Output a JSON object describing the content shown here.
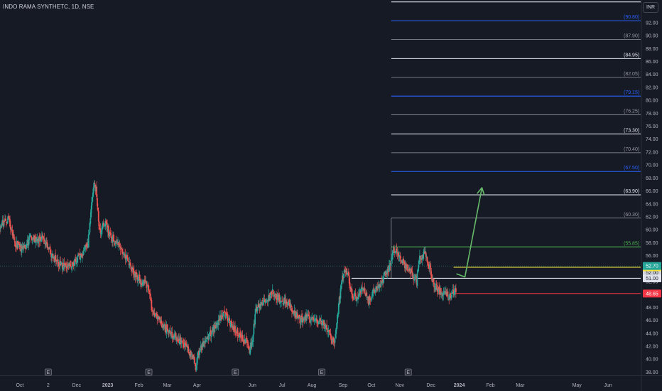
{
  "header": {
    "symbol_title": "INDO RAMA SYNTHETC, 1D, NSE",
    "currency_label": "INR"
  },
  "colors": {
    "background": "#161a25",
    "candle_up": "#26a69a",
    "candle_down": "#ef5350",
    "white_level": "#e0e3eb",
    "gray_level": "#9598a1",
    "blue_level": "#2962ff",
    "green_level": "#4caf50",
    "yellow_level": "#f7e13d",
    "red_level": "#f23645",
    "arrow": "#66bb6a",
    "current_price_line": "#26a69a"
  },
  "chart_data": {
    "type": "candlestick",
    "ylim": [
      37.5,
      95.5
    ],
    "x_range": [
      0,
      226
    ],
    "y_ticks": [
      "38.00",
      "40.00",
      "42.00",
      "44.00",
      "46.00",
      "48.00",
      "50.00",
      "52.00",
      "54.00",
      "56.00",
      "58.00",
      "60.00",
      "62.00",
      "64.00",
      "66.00",
      "68.00",
      "70.00",
      "72.00",
      "74.00",
      "76.00",
      "78.00",
      "80.00",
      "82.00",
      "84.00",
      "86.00",
      "88.00",
      "90.00",
      "92.00"
    ],
    "x_ticks": [
      {
        "label": "Oct",
        "x": 7,
        "bold": false
      },
      {
        "label": "2",
        "x": 17,
        "bold": false
      },
      {
        "label": "Dec",
        "x": 27,
        "bold": false
      },
      {
        "label": "2023",
        "x": 38,
        "bold": true
      },
      {
        "label": "Feb",
        "x": 49,
        "bold": false
      },
      {
        "label": "Mar",
        "x": 59,
        "bold": false
      },
      {
        "label": "Apr",
        "x": 69.5,
        "bold": false
      },
      {
        "label": "Jun",
        "x": 89,
        "bold": false
      },
      {
        "label": "Jul",
        "x": 99.5,
        "bold": false
      },
      {
        "label": "Aug",
        "x": 110,
        "bold": false
      },
      {
        "label": "Sep",
        "x": 121,
        "bold": false
      },
      {
        "label": "Oct",
        "x": 131,
        "bold": false
      },
      {
        "label": "Nov",
        "x": 141,
        "bold": false
      },
      {
        "label": "Dec",
        "x": 152,
        "bold": false
      },
      {
        "label": "2024",
        "x": 162,
        "bold": true
      },
      {
        "label": "Feb",
        "x": 173,
        "bold": false
      },
      {
        "label": "Mar",
        "x": 183.5,
        "bold": false
      },
      {
        "label": "May",
        "x": 203.5,
        "bold": false
      },
      {
        "label": "Jun",
        "x": 214.5,
        "bold": false
      }
    ],
    "earnings_markers": [
      {
        "label": "E",
        "x": 17
      },
      {
        "label": "E",
        "x": 52.5
      },
      {
        "label": "E",
        "x": 83
      },
      {
        "label": "E",
        "x": 113.5
      },
      {
        "label": "E",
        "x": 144
      }
    ],
    "price_anchors": [
      [
        0,
        60.6
      ],
      [
        3,
        61.8
      ],
      [
        5,
        58.2
      ],
      [
        8,
        56.8
      ],
      [
        11,
        59.0
      ],
      [
        13,
        58.5
      ],
      [
        15,
        58.9
      ],
      [
        17,
        57.0
      ],
      [
        20,
        55.0
      ],
      [
        23,
        54.3
      ],
      [
        26,
        54.8
      ],
      [
        29,
        56.5
      ],
      [
        31,
        57.5
      ],
      [
        33,
        67.0
      ],
      [
        34,
        66.0
      ],
      [
        35,
        59.5
      ],
      [
        37,
        61.0
      ],
      [
        39,
        59.0
      ],
      [
        42,
        57.5
      ],
      [
        44,
        56.0
      ],
      [
        47,
        53.5
      ],
      [
        50,
        52.0
      ],
      [
        52,
        51.5
      ],
      [
        54,
        47.0
      ],
      [
        57,
        45.5
      ],
      [
        60,
        44.0
      ],
      [
        63,
        43.0
      ],
      [
        66,
        41.5
      ],
      [
        68,
        40.5
      ],
      [
        69,
        38.5
      ],
      [
        70,
        40.8
      ],
      [
        72,
        43.0
      ],
      [
        75,
        44.5
      ],
      [
        77,
        46.0
      ],
      [
        79,
        47.0
      ],
      [
        81,
        45.8
      ],
      [
        84,
        44.0
      ],
      [
        87,
        42.5
      ],
      [
        88,
        41.5
      ],
      [
        89,
        42.8
      ],
      [
        90,
        47.0
      ],
      [
        92,
        49.0
      ],
      [
        94,
        48.5
      ],
      [
        96,
        50.5
      ],
      [
        98,
        49.5
      ],
      [
        100,
        49.0
      ],
      [
        102,
        48.5
      ],
      [
        104,
        47.0
      ],
      [
        106,
        46.0
      ],
      [
        108,
        46.5
      ],
      [
        111,
        46.0
      ],
      [
        113,
        46.2
      ],
      [
        115,
        45.0
      ],
      [
        117,
        43.0
      ],
      [
        118,
        42.5
      ],
      [
        119,
        47.0
      ],
      [
        121,
        53.0
      ],
      [
        122,
        54.0
      ],
      [
        123,
        52.5
      ],
      [
        124,
        50.0
      ],
      [
        126,
        49.5
      ],
      [
        128,
        51.0
      ],
      [
        130,
        49.0
      ],
      [
        132,
        50.5
      ],
      [
        134,
        51.5
      ],
      [
        137,
        54.0
      ],
      [
        139,
        57.0
      ],
      [
        141,
        56.0
      ],
      [
        143,
        54.5
      ],
      [
        145,
        53.5
      ],
      [
        147,
        52.0
      ],
      [
        148,
        55.5
      ],
      [
        150,
        56.5
      ],
      [
        151,
        55.0
      ],
      [
        153,
        51.5
      ],
      [
        155,
        50.5
      ],
      [
        157,
        50.0
      ],
      [
        159,
        49.5
      ],
      [
        160,
        50.5
      ],
      [
        161,
        51.0
      ]
    ],
    "levels": [
      {
        "value": 95.2,
        "label": "",
        "color": "#e0e3eb",
        "x_start": 138,
        "show_box": false,
        "bracketed": false
      },
      {
        "value": 92.3,
        "label": "(90.80)",
        "color": "#2962ff",
        "x_start": 138,
        "show_box": false,
        "bracketed": true
      },
      {
        "value": 89.4,
        "label": "(87.90)",
        "color": "#9598a1",
        "x_start": 138,
        "show_box": false,
        "bracketed": true
      },
      {
        "value": 86.45,
        "label": "(84.95)",
        "color": "#e0e3eb",
        "x_start": 138,
        "show_box": false,
        "bracketed": true
      },
      {
        "value": 83.55,
        "label": "(82.05)",
        "color": "#9598a1",
        "x_start": 138,
        "show_box": false,
        "bracketed": true
      },
      {
        "value": 80.65,
        "label": "(79.15)",
        "color": "#2962ff",
        "x_start": 138,
        "show_box": false,
        "bracketed": true
      },
      {
        "value": 77.75,
        "label": "(76.25)",
        "color": "#9598a1",
        "x_start": 138,
        "show_box": false,
        "bracketed": true
      },
      {
        "value": 74.8,
        "label": "(73.30)",
        "color": "#e0e3eb",
        "x_start": 138,
        "show_box": false,
        "bracketed": true
      },
      {
        "value": 71.9,
        "label": "(70.40)",
        "color": "#9598a1",
        "x_start": 138,
        "show_box": false,
        "bracketed": true
      },
      {
        "value": 69.0,
        "label": "(67.50)",
        "color": "#2962ff",
        "x_start": 138,
        "show_box": false,
        "bracketed": true
      },
      {
        "value": 65.4,
        "label": "(63.90)",
        "color": "#e0e3eb",
        "x_start": 138,
        "show_box": false,
        "bracketed": true
      },
      {
        "value": 61.8,
        "label": "(60.30)",
        "color": "#9598a1",
        "x_start": 138,
        "show_box": false,
        "bracketed": true
      },
      {
        "value": 57.35,
        "label": "(55.85)",
        "color": "#4caf50",
        "x_start": 138,
        "show_box": false,
        "bracketed": true
      },
      {
        "value": 54.2,
        "label": "52.70",
        "color": "#f7e13d",
        "x_start": 160,
        "show_box": true,
        "bracketed": false
      },
      {
        "value": 52.5,
        "label": "51.00",
        "color": "#e0e3eb",
        "x_start": 124,
        "show_box": true,
        "bracketed": false
      },
      {
        "value": 50.15,
        "label": "48.65",
        "color": "#f23645",
        "x_start": 159,
        "show_box": true,
        "bracketed": false
      }
    ],
    "current_price": {
      "value": 54.4,
      "label": "52.70",
      "color": "#26a69a"
    },
    "hidden_box_label": "52.00",
    "projection_arrow": {
      "points": [
        [
          161,
          53.2
        ],
        [
          164,
          52.7
        ],
        [
          170,
          66.5
        ]
      ]
    },
    "fib_box": {
      "x_start": 138,
      "x_end": 160,
      "top": 61.8,
      "bottom": 52.5
    }
  }
}
